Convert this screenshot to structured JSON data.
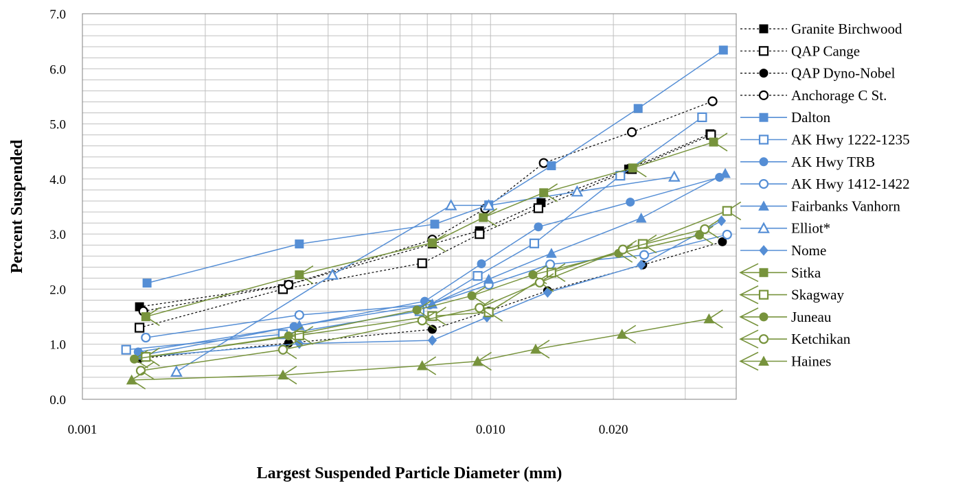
{
  "chart_data": {
    "type": "scatter",
    "title": "",
    "xlabel": "Largest Suspended Particle Diameter (mm)",
    "ylabel": "Percent Suspended",
    "x_scale": "log",
    "xlim": [
      0.001,
      0.04
    ],
    "ylim": [
      0.0,
      7.0
    ],
    "y_ticks": [
      "0.0",
      "1.0",
      "2.0",
      "3.0",
      "4.0",
      "5.0",
      "6.0",
      "7.0"
    ],
    "x_tick_labels": [
      {
        "value": 0.001,
        "label": "0.001"
      },
      {
        "value": 0.01,
        "label": "0.010"
      },
      {
        "value": 0.02,
        "label": "0.020"
      }
    ],
    "grid": true,
    "legend_position": "right",
    "series": [
      {
        "name": "Granite Birchwood",
        "color": "#000000",
        "line": "dashed",
        "marker": "square-filled",
        "x": [
          0.00138,
          0.0032,
          0.0072,
          0.0094,
          0.0133,
          0.0218,
          0.0345
        ],
        "y": [
          1.68,
          2.08,
          2.82,
          3.06,
          3.57,
          4.18,
          4.82
        ]
      },
      {
        "name": "QAP Cange",
        "color": "#000000",
        "line": "dashed",
        "marker": "square-open",
        "x": [
          0.00138,
          0.0031,
          0.0068,
          0.0094,
          0.0131,
          0.0222,
          0.0347
        ],
        "y": [
          1.3,
          2.0,
          2.47,
          3.0,
          3.47,
          4.18,
          4.8
        ]
      },
      {
        "name": "QAP Dyno-Nobel",
        "color": "#000000",
        "line": "dashed",
        "marker": "circle-filled",
        "x": [
          0.00138,
          0.0032,
          0.0072,
          0.0099,
          0.0138,
          0.0236,
          0.037
        ],
        "y": [
          0.74,
          1.02,
          1.27,
          1.6,
          1.97,
          2.44,
          2.86
        ]
      },
      {
        "name": "Anchorage C St.",
        "color": "#000000",
        "line": "dashed",
        "marker": "circle-open",
        "x": [
          0.00141,
          0.0032,
          0.0072,
          0.0097,
          0.0135,
          0.0222,
          0.035
        ],
        "y": [
          1.6,
          2.08,
          2.9,
          3.46,
          4.29,
          4.85,
          5.41
        ]
      },
      {
        "name": "Dalton",
        "color": "#558ED5",
        "line": "solid",
        "marker": "square-filled",
        "x": [
          0.00144,
          0.0034,
          0.0073,
          0.0099,
          0.0141,
          0.023,
          0.0372
        ],
        "y": [
          2.11,
          2.82,
          3.18,
          3.53,
          4.24,
          5.28,
          6.34
        ]
      },
      {
        "name": "AK Hwy 1222-1235",
        "color": "#558ED5",
        "line": "solid",
        "marker": "square-open",
        "x": [
          0.00128,
          0.0031,
          0.0067,
          0.0093,
          0.0128,
          0.0208,
          0.033
        ],
        "y": [
          0.9,
          1.18,
          1.6,
          2.24,
          2.83,
          4.06,
          5.12
        ]
      },
      {
        "name": "AK Hwy TRB",
        "color": "#558ED5",
        "line": "solid",
        "marker": "circle-filled",
        "x": [
          0.00137,
          0.0033,
          0.0069,
          0.0095,
          0.0131,
          0.022,
          0.0364
        ],
        "y": [
          0.86,
          1.32,
          1.78,
          2.46,
          3.13,
          3.58,
          4.03
        ]
      },
      {
        "name": "AK Hwy 1412-1422",
        "color": "#558ED5",
        "line": "solid",
        "marker": "circle-open",
        "x": [
          0.00143,
          0.0034,
          0.0071,
          0.0099,
          0.014,
          0.0238,
          0.038
        ],
        "y": [
          1.12,
          1.53,
          1.72,
          2.08,
          2.45,
          2.62,
          2.99
        ]
      },
      {
        "name": "Fairbanks Vanhorn",
        "color": "#558ED5",
        "line": "solid",
        "marker": "triangle-filled",
        "x": [
          0.0014,
          0.0034,
          0.0072,
          0.0099,
          0.0141,
          0.0234,
          0.0376
        ],
        "y": [
          0.8,
          1.34,
          1.73,
          2.18,
          2.65,
          3.29,
          4.1
        ]
      },
      {
        "name": "Elliot*",
        "color": "#558ED5",
        "line": "solid",
        "marker": "triangle-open",
        "x": [
          0.0017,
          0.0041,
          0.008,
          0.0099,
          0.0163,
          0.0282
        ],
        "y": [
          0.5,
          2.26,
          3.52,
          3.52,
          3.77,
          4.04
        ]
      },
      {
        "name": "Nome",
        "color": "#558ED5",
        "line": "solid",
        "marker": "diamond-filled",
        "x": [
          0.00141,
          0.0034,
          0.0072,
          0.0098,
          0.0138,
          0.0234,
          0.0368
        ],
        "y": [
          0.77,
          1.01,
          1.07,
          1.49,
          1.94,
          2.44,
          3.24
        ]
      },
      {
        "name": "Sitka",
        "color": "#77933C",
        "line": "solid",
        "marker": "arrow-square-filled",
        "x": [
          0.00143,
          0.0034,
          0.0072,
          0.0096,
          0.0135,
          0.0223,
          0.0352
        ],
        "y": [
          1.5,
          2.26,
          2.84,
          3.3,
          3.75,
          4.2,
          4.67
        ]
      },
      {
        "name": "Skagway",
        "color": "#77933C",
        "line": "solid",
        "marker": "arrow-square-open",
        "x": [
          0.00143,
          0.0034,
          0.0072,
          0.0099,
          0.0141,
          0.0236,
          0.038
        ],
        "y": [
          0.77,
          1.16,
          1.51,
          1.58,
          2.3,
          2.82,
          3.42
        ]
      },
      {
        "name": "Juneau",
        "color": "#77933C",
        "line": "solid",
        "marker": "arrow-circle-filled",
        "x": [
          0.00134,
          0.0032,
          0.0066,
          0.009,
          0.0127,
          0.0206,
          0.0325
        ],
        "y": [
          0.73,
          1.15,
          1.62,
          1.88,
          2.26,
          2.65,
          2.98
        ]
      },
      {
        "name": "Ketchikan",
        "color": "#77933C",
        "line": "solid",
        "marker": "arrow-circle-open",
        "x": [
          0.00139,
          0.0031,
          0.0068,
          0.0094,
          0.0132,
          0.0211,
          0.0335
        ],
        "y": [
          0.52,
          0.9,
          1.43,
          1.66,
          2.12,
          2.72,
          3.09
        ]
      },
      {
        "name": "Haines",
        "color": "#77933C",
        "line": "solid",
        "marker": "arrow-triangle-filled",
        "x": [
          0.00132,
          0.0031,
          0.0068,
          0.0093,
          0.0129,
          0.021,
          0.0343
        ],
        "y": [
          0.35,
          0.44,
          0.61,
          0.69,
          0.91,
          1.18,
          1.46
        ]
      }
    ]
  }
}
